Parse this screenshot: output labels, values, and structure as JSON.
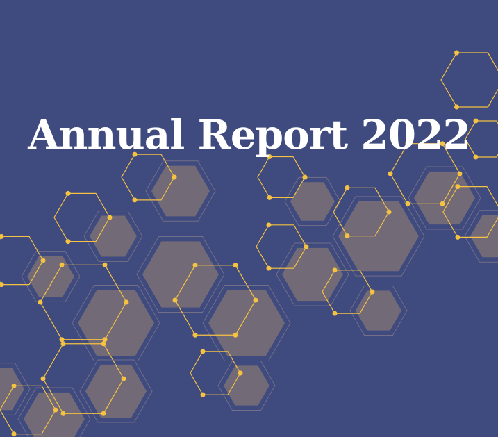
{
  "cover": {
    "title": "Annual Report 2022"
  },
  "colors": {
    "background": "#3f4a7e",
    "hexagon_fill": "#7d7077",
    "accent_line": "#f5c242"
  },
  "decoration": {
    "icon": "hexagon-network-pattern"
  }
}
